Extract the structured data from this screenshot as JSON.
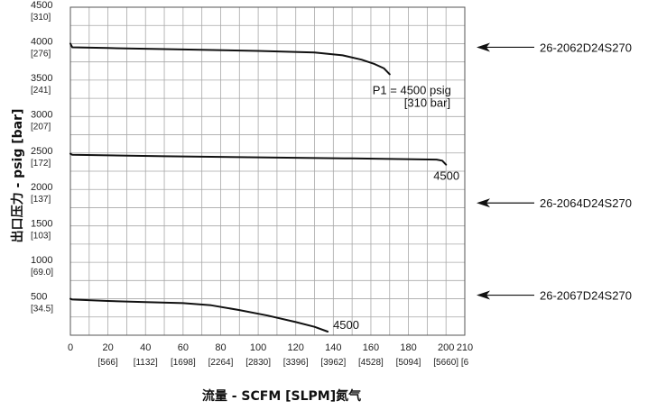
{
  "chart_data": {
    "type": "line",
    "xlabel": "流量 - SCFM [SLPM]氮气",
    "ylabel": "出口压力 - psig [bar]",
    "xlim": [
      0,
      210
    ],
    "ylim": [
      0,
      4500
    ],
    "grid": true,
    "x_ticks": [
      {
        "value": 0,
        "label": "0",
        "sub": ""
      },
      {
        "value": 20,
        "label": "20",
        "sub": "[566]"
      },
      {
        "value": 40,
        "label": "40",
        "sub": "[1132]"
      },
      {
        "value": 60,
        "label": "60",
        "sub": "[1698]"
      },
      {
        "value": 80,
        "label": "80",
        "sub": "[2264]"
      },
      {
        "value": 100,
        "label": "100",
        "sub": "[2830]"
      },
      {
        "value": 120,
        "label": "120",
        "sub": "[3396]"
      },
      {
        "value": 140,
        "label": "140",
        "sub": "[3962]"
      },
      {
        "value": 160,
        "label": "160",
        "sub": "[4528]"
      },
      {
        "value": 180,
        "label": "180",
        "sub": "[5094]"
      },
      {
        "value": 200,
        "label": "200",
        "sub": "[5660]"
      },
      {
        "value": 210,
        "label": "210",
        "sub": "[6"
      }
    ],
    "y_ticks": [
      {
        "value": 500,
        "label": "500",
        "sub": "[34.5]"
      },
      {
        "value": 1000,
        "label": "1000",
        "sub": "[69.0]"
      },
      {
        "value": 1500,
        "label": "1500",
        "sub": "[103]"
      },
      {
        "value": 2000,
        "label": "2000",
        "sub": "[137]"
      },
      {
        "value": 2500,
        "label": "2500",
        "sub": "[172]"
      },
      {
        "value": 3000,
        "label": "3000",
        "sub": "[207]"
      },
      {
        "value": 3500,
        "label": "3500",
        "sub": "[241]"
      },
      {
        "value": 4000,
        "label": "4000",
        "sub": "[276]"
      },
      {
        "value": 4500,
        "label": "4500",
        "sub": "[310]"
      }
    ],
    "series": [
      {
        "name": "26-2062D24S270",
        "end_label": "P1 = 4500 psig",
        "end_label_sub": "[310 bar]",
        "x": [
          0,
          1,
          20,
          60,
          100,
          130,
          145,
          155,
          162,
          167,
          170
        ],
        "y": [
          4000,
          3950,
          3940,
          3920,
          3900,
          3880,
          3840,
          3780,
          3720,
          3660,
          3580
        ]
      },
      {
        "name": "26-2064D24S270",
        "end_label": "4500",
        "end_label_sub": "",
        "x": [
          0,
          1,
          50,
          100,
          150,
          195,
          198,
          200
        ],
        "y": [
          2490,
          2475,
          2455,
          2440,
          2425,
          2410,
          2395,
          2340
        ]
      },
      {
        "name": "26-2067D24S270",
        "end_label": "4500",
        "end_label_sub": "",
        "x": [
          0,
          1,
          20,
          40,
          60,
          75,
          90,
          105,
          120,
          130,
          137
        ],
        "y": [
          500,
          490,
          470,
          455,
          440,
          410,
          345,
          270,
          180,
          115,
          50
        ]
      }
    ]
  }
}
